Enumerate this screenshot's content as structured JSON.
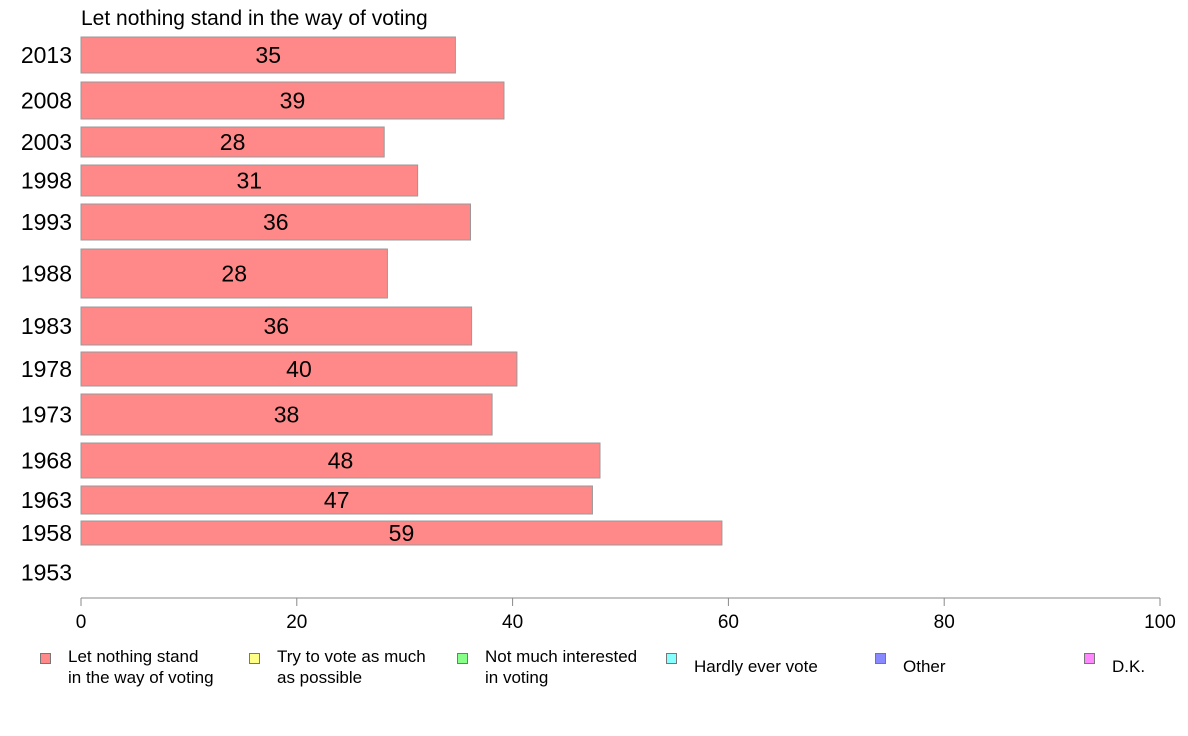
{
  "chart_data": {
    "type": "bar",
    "orientation": "horizontal",
    "title": "Let nothing stand in the way of voting",
    "xlabel": "",
    "ylabel": "",
    "xlim": [
      0,
      100
    ],
    "x_ticks": [
      0,
      20,
      40,
      60,
      80,
      100
    ],
    "grid": false,
    "categories": [
      "2013",
      "2008",
      "2003",
      "1998",
      "1993",
      "1988",
      "1983",
      "1978",
      "1973",
      "1968",
      "1963",
      "1958",
      "1953"
    ],
    "series": [
      {
        "name": "Let nothing stand in the way of voting",
        "color": "#ff8888",
        "values": [
          34.7,
          39.2,
          28.1,
          31.2,
          36.1,
          28.4,
          36.2,
          40.4,
          38.1,
          48.1,
          47.4,
          59.4,
          null
        ],
        "labels": [
          "35",
          "39",
          "28",
          "31",
          "36",
          "28",
          "36",
          "40",
          "38",
          "48",
          "47",
          "59",
          ""
        ]
      }
    ],
    "legend": {
      "placement": "bottom",
      "entries": [
        {
          "label": "Let nothing stand\nin the way of voting",
          "color": "#ff8888"
        },
        {
          "label": "Try to vote as much\nas possible",
          "color": "#ffff88"
        },
        {
          "label": "Not much interested\nin voting",
          "color": "#88ff88"
        },
        {
          "label": "Hardly ever vote",
          "color": "#88ffff"
        },
        {
          "label": "Other",
          "color": "#8888ff"
        },
        {
          "label": "D.K.",
          "color": "#ff88ff"
        }
      ]
    }
  }
}
